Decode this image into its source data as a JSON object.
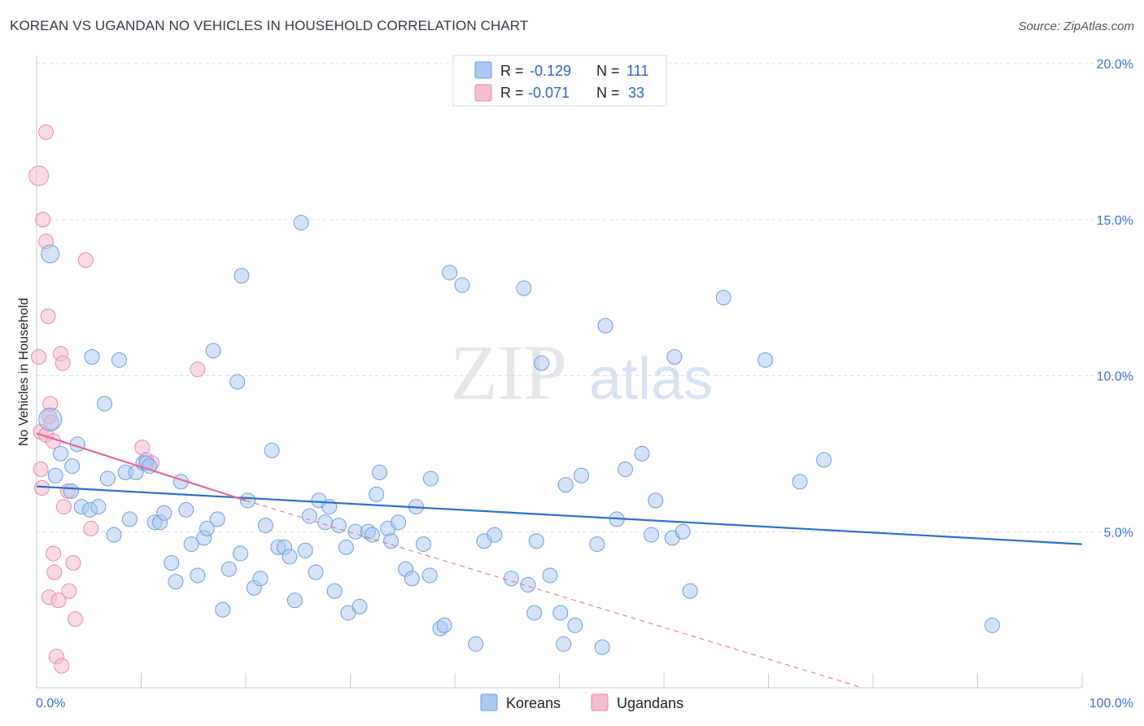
{
  "title": "KOREAN VS UGANDAN NO VEHICLES IN HOUSEHOLD CORRELATION CHART",
  "source": "Source: ZipAtlas.com",
  "watermark": {
    "zip": "ZIP",
    "atlas": "atlas"
  },
  "colors": {
    "korean_fill": "#aac8f0",
    "korean_stroke": "#6e9ede",
    "korean_line": "#2a6fd1",
    "ugandan_fill": "#f6bcd0",
    "ugandan_stroke": "#e88aab",
    "ugandan_line": "#e06a95",
    "axis_text": "#3c6fd6",
    "grid": "#d8dde6"
  },
  "legend": {
    "row1": {
      "r_label": "R =",
      "r_value": "-0.129",
      "n_label": "N =",
      "n_value": "111"
    },
    "row2": {
      "r_label": "R =",
      "r_value": "-0.071",
      "n_label": "N =",
      "n_value": "33"
    }
  },
  "bottom_legend": {
    "koreans": "Koreans",
    "ugandans": "Ugandans"
  },
  "chart_data": {
    "type": "scatter",
    "xlabel": "",
    "ylabel": "No Vehicles in Household",
    "xlim": [
      0,
      100
    ],
    "ylim": [
      0,
      20
    ],
    "x_tick_labels": [
      "0.0%",
      "100.0%"
    ],
    "y_tick_labels": [
      "5.0%",
      "10.0%",
      "15.0%",
      "20.0%"
    ],
    "y_tick_values": [
      5,
      10,
      15,
      20
    ],
    "series": [
      {
        "name": "Koreans",
        "trend": {
          "x0": 0,
          "y0": 6.45,
          "x1": 100,
          "y1": 4.6
        },
        "points": [
          [
            1.3,
            8.6,
            14
          ],
          [
            1.3,
            13.9,
            11
          ],
          [
            1.8,
            6.8,
            9
          ],
          [
            2.3,
            7.5,
            9
          ],
          [
            3.3,
            6.3,
            9
          ],
          [
            3.4,
            7.1,
            9
          ],
          [
            3.9,
            7.8,
            9
          ],
          [
            4.3,
            5.8,
            9
          ],
          [
            5.1,
            5.7,
            9
          ],
          [
            5.3,
            10.6,
            9
          ],
          [
            5.9,
            5.8,
            9
          ],
          [
            6.5,
            9.1,
            9
          ],
          [
            6.8,
            6.7,
            9
          ],
          [
            7.4,
            4.9,
            9
          ],
          [
            7.9,
            10.5,
            9
          ],
          [
            8.5,
            6.9,
            9
          ],
          [
            8.9,
            5.4,
            9
          ],
          [
            9.5,
            6.9,
            9
          ],
          [
            10.2,
            7.2,
            9
          ],
          [
            10.5,
            7.2,
            9
          ],
          [
            10.8,
            7.1,
            9
          ],
          [
            11.3,
            5.3,
            9
          ],
          [
            11.8,
            5.3,
            9
          ],
          [
            12.2,
            5.6,
            9
          ],
          [
            12.9,
            4.0,
            9
          ],
          [
            13.3,
            3.4,
            9
          ],
          [
            13.8,
            6.6,
            9
          ],
          [
            14.3,
            5.7,
            9
          ],
          [
            14.8,
            4.6,
            9
          ],
          [
            15.4,
            3.6,
            9
          ],
          [
            16.0,
            4.8,
            9
          ],
          [
            16.3,
            5.1,
            9
          ],
          [
            16.9,
            10.8,
            9
          ],
          [
            17.3,
            5.4,
            9
          ],
          [
            17.8,
            2.5,
            9
          ],
          [
            18.4,
            3.8,
            9
          ],
          [
            19.2,
            9.8,
            9
          ],
          [
            19.5,
            4.3,
            9
          ],
          [
            19.6,
            13.2,
            9
          ],
          [
            20.2,
            6.0,
            9
          ],
          [
            20.8,
            3.2,
            9
          ],
          [
            21.4,
            3.5,
            9
          ],
          [
            21.9,
            5.2,
            9
          ],
          [
            22.5,
            7.6,
            9
          ],
          [
            23.1,
            4.5,
            9
          ],
          [
            23.7,
            4.5,
            9
          ],
          [
            24.2,
            4.2,
            9
          ],
          [
            24.7,
            2.8,
            9
          ],
          [
            25.3,
            14.9,
            9
          ],
          [
            25.7,
            4.4,
            9
          ],
          [
            26.1,
            5.5,
            9
          ],
          [
            26.7,
            3.7,
            9
          ],
          [
            27.0,
            6.0,
            9
          ],
          [
            27.6,
            5.3,
            9
          ],
          [
            28.0,
            5.8,
            9
          ],
          [
            28.5,
            3.1,
            9
          ],
          [
            28.9,
            5.2,
            9
          ],
          [
            29.6,
            4.5,
            9
          ],
          [
            29.8,
            2.4,
            9
          ],
          [
            30.5,
            5.0,
            9
          ],
          [
            30.9,
            2.6,
            9
          ],
          [
            31.7,
            5.0,
            9
          ],
          [
            32.1,
            4.9,
            9
          ],
          [
            32.5,
            6.2,
            9
          ],
          [
            32.8,
            6.9,
            9
          ],
          [
            33.6,
            5.1,
            9
          ],
          [
            33.9,
            4.7,
            9
          ],
          [
            34.6,
            5.3,
            9
          ],
          [
            35.3,
            3.8,
            9
          ],
          [
            35.9,
            3.5,
            9
          ],
          [
            36.3,
            5.8,
            9
          ],
          [
            37.0,
            4.6,
            9
          ],
          [
            37.6,
            3.6,
            9
          ],
          [
            37.7,
            6.7,
            9
          ],
          [
            38.6,
            1.9,
            9
          ],
          [
            39.0,
            2.0,
            9
          ],
          [
            39.5,
            13.3,
            9
          ],
          [
            40.7,
            12.9,
            9
          ],
          [
            42.0,
            1.4,
            9
          ],
          [
            42.8,
            4.7,
            9
          ],
          [
            43.8,
            4.9,
            9
          ],
          [
            45.4,
            3.5,
            9
          ],
          [
            46.6,
            12.8,
            9
          ],
          [
            47.0,
            3.3,
            9
          ],
          [
            47.6,
            2.4,
            9
          ],
          [
            47.8,
            4.7,
            9
          ],
          [
            48.3,
            10.4,
            9
          ],
          [
            49.1,
            3.6,
            9
          ],
          [
            50.1,
            2.4,
            9
          ],
          [
            50.4,
            1.4,
            9
          ],
          [
            50.6,
            6.5,
            9
          ],
          [
            51.5,
            2.0,
            9
          ],
          [
            52.1,
            6.8,
            9
          ],
          [
            53.6,
            4.6,
            9
          ],
          [
            54.1,
            1.3,
            9
          ],
          [
            54.4,
            11.6,
            9
          ],
          [
            55.5,
            5.4,
            9
          ],
          [
            56.3,
            7.0,
            9
          ],
          [
            57.9,
            7.5,
            9
          ],
          [
            58.8,
            4.9,
            9
          ],
          [
            59.2,
            6.0,
            9
          ],
          [
            60.8,
            4.8,
            9
          ],
          [
            61.0,
            10.6,
            9
          ],
          [
            61.8,
            5.0,
            9
          ],
          [
            62.5,
            3.1,
            9
          ],
          [
            65.7,
            12.5,
            9
          ],
          [
            69.7,
            10.5,
            9
          ],
          [
            73.0,
            6.6,
            9
          ],
          [
            75.3,
            7.3,
            9
          ],
          [
            91.4,
            2.0,
            9
          ]
        ]
      },
      {
        "name": "Ugandans",
        "trend": {
          "x0": 0,
          "y0": 8.15,
          "x1": 20,
          "y1": 6.0
        },
        "trend_extension": {
          "x0": 20,
          "y0": 6.0,
          "x1": 79,
          "y1": 0
        },
        "points": [
          [
            0.2,
            16.4,
            12
          ],
          [
            0.9,
            17.8,
            9
          ],
          [
            0.6,
            15.0,
            9
          ],
          [
            0.9,
            14.3,
            9
          ],
          [
            0.2,
            10.6,
            9
          ],
          [
            0.4,
            7.0,
            9
          ],
          [
            0.5,
            6.4,
            9
          ],
          [
            0.4,
            8.2,
            9
          ],
          [
            1.2,
            8.7,
            9
          ],
          [
            0.9,
            8.1,
            9
          ],
          [
            1.1,
            11.9,
            9
          ],
          [
            1.3,
            9.1,
            9
          ],
          [
            1.4,
            8.5,
            9
          ],
          [
            1.6,
            7.9,
            9
          ],
          [
            2.3,
            10.7,
            9
          ],
          [
            2.5,
            10.4,
            9
          ],
          [
            2.6,
            5.8,
            9
          ],
          [
            3.0,
            6.3,
            9
          ],
          [
            1.6,
            4.3,
            9
          ],
          [
            1.7,
            3.7,
            9
          ],
          [
            1.2,
            2.9,
            9
          ],
          [
            2.1,
            2.8,
            9
          ],
          [
            3.1,
            3.1,
            9
          ],
          [
            3.5,
            4.0,
            9
          ],
          [
            3.7,
            2.2,
            9
          ],
          [
            1.9,
            1.0,
            9
          ],
          [
            2.4,
            0.7,
            9
          ],
          [
            4.7,
            13.7,
            9
          ],
          [
            5.2,
            5.1,
            9
          ],
          [
            10.1,
            7.7,
            9
          ],
          [
            10.5,
            7.3,
            9
          ],
          [
            11.0,
            7.2,
            9
          ],
          [
            15.4,
            10.2,
            9
          ]
        ]
      }
    ]
  }
}
